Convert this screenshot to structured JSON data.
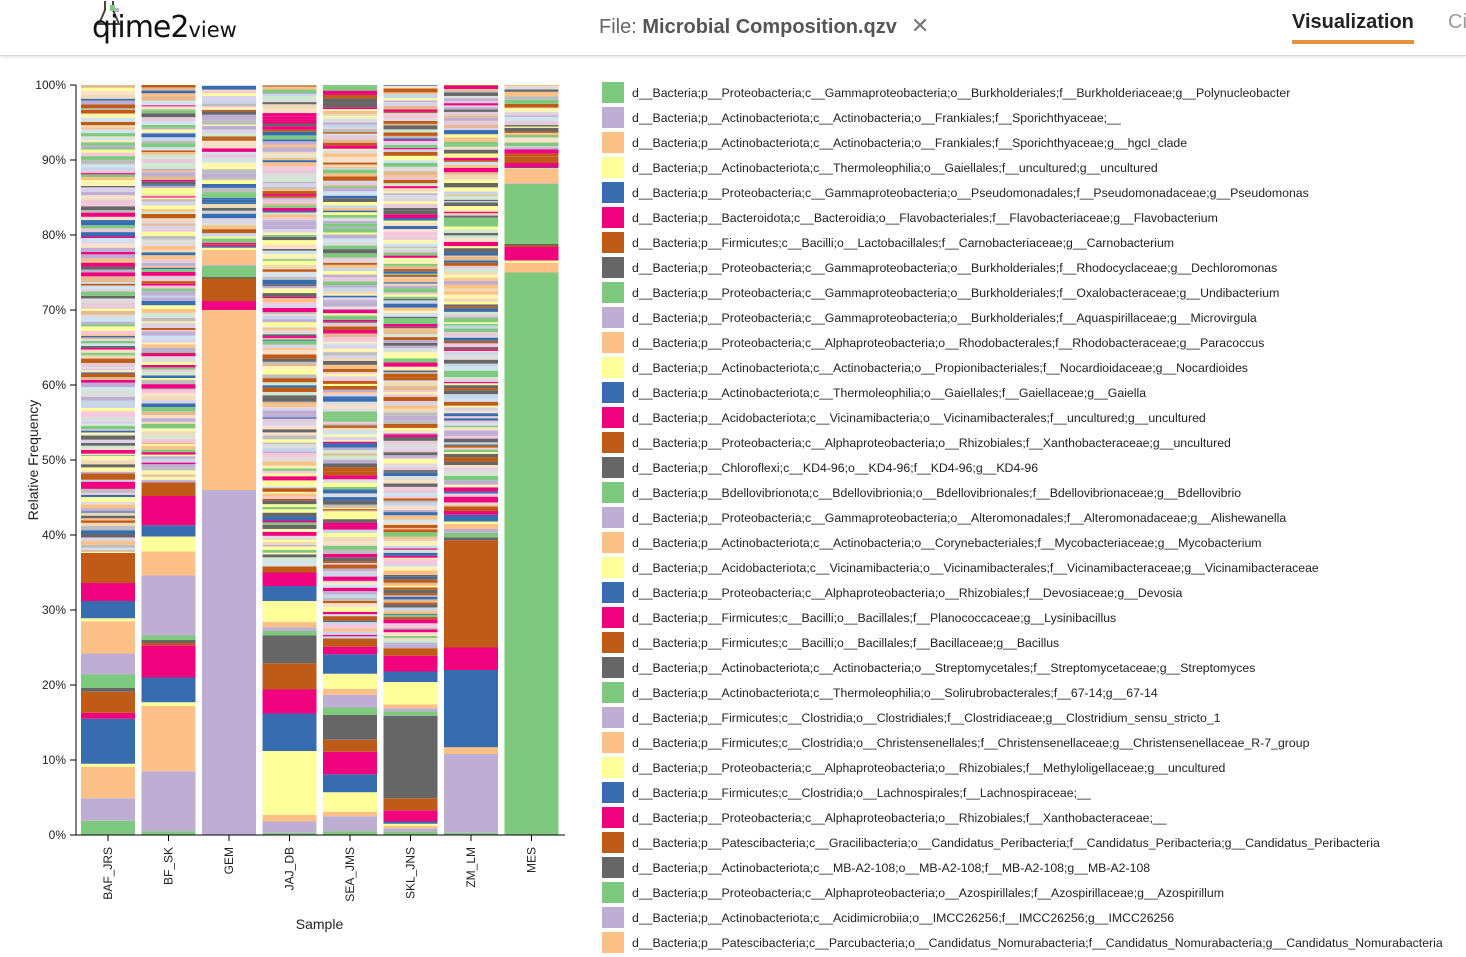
{
  "header": {
    "logo_text": "qiime2",
    "logo_suffix": "view",
    "file_prefix": "File:",
    "file_name": "Microbial Composition.qzv",
    "close_symbol": "✕",
    "tab_active": "Visualization",
    "tab_partial": "Ci"
  },
  "colors": [
    "#7fc97f",
    "#beaed4",
    "#fdc086",
    "#ffff99",
    "#386cb0",
    "#f0027f",
    "#bf5b17",
    "#666666"
  ],
  "legend": [
    "d__Bacteria;p__Proteobacteria;c__Gammaproteobacteria;o__Burkholderiales;f__Burkholderiaceae;g__Polynucleobacter",
    "d__Bacteria;p__Actinobacteriota;c__Actinobacteria;o__Frankiales;f__Sporichthyaceae;__",
    "d__Bacteria;p__Actinobacteriota;c__Actinobacteria;o__Frankiales;f__Sporichthyaceae;g__hgcI_clade",
    "d__Bacteria;p__Actinobacteriota;c__Thermoleophilia;o__Gaiellales;f__uncultured;g__uncultured",
    "d__Bacteria;p__Proteobacteria;c__Gammaproteobacteria;o__Pseudomonadales;f__Pseudomonadaceae;g__Pseudomonas",
    "d__Bacteria;p__Bacteroidota;c__Bacteroidia;o__Flavobacteriales;f__Flavobacteriaceae;g__Flavobacterium",
    "d__Bacteria;p__Firmicutes;c__Bacilli;o__Lactobacillales;f__Carnobacteriaceae;g__Carnobacterium",
    "d__Bacteria;p__Proteobacteria;c__Gammaproteobacteria;o__Burkholderiales;f__Rhodocyclaceae;g__Dechloromonas",
    "d__Bacteria;p__Proteobacteria;c__Gammaproteobacteria;o__Burkholderiales;f__Oxalobacteraceae;g__Undibacterium",
    "d__Bacteria;p__Proteobacteria;c__Gammaproteobacteria;o__Burkholderiales;f__Aquaspirillaceae;g__Microvirgula",
    "d__Bacteria;p__Proteobacteria;c__Alphaproteobacteria;o__Rhodobacterales;f__Rhodobacteraceae;g__Paracoccus",
    "d__Bacteria;p__Actinobacteriota;c__Actinobacteria;o__Propionibacteriales;f__Nocardioidaceae;g__Nocardioides",
    "d__Bacteria;p__Actinobacteriota;c__Thermoleophilia;o__Gaiellales;f__Gaiellaceae;g__Gaiella",
    "d__Bacteria;p__Acidobacteriota;c__Vicinamibacteria;o__Vicinamibacterales;f__uncultured;g__uncultured",
    "d__Bacteria;p__Proteobacteria;c__Alphaproteobacteria;o__Rhizobiales;f__Xanthobacteraceae;g__uncultured",
    "d__Bacteria;p__Chloroflexi;c__KD4-96;o__KD4-96;f__KD4-96;g__KD4-96",
    "d__Bacteria;p__Bdellovibrionota;c__Bdellovibrionia;o__Bdellovibrionales;f__Bdellovibrionaceae;g__Bdellovibrio",
    "d__Bacteria;p__Proteobacteria;c__Gammaproteobacteria;o__Alteromonadales;f__Alteromonadaceae;g__Alishewanella",
    "d__Bacteria;p__Actinobacteriota;c__Actinobacteria;o__Corynebacteriales;f__Mycobacteriaceae;g__Mycobacterium",
    "d__Bacteria;p__Acidobacteriota;c__Vicinamibacteria;o__Vicinamibacterales;f__Vicinamibacteraceae;g__Vicinamibacteraceae",
    "d__Bacteria;p__Proteobacteria;c__Alphaproteobacteria;o__Rhizobiales;f__Devosiaceae;g__Devosia",
    "d__Bacteria;p__Firmicutes;c__Bacilli;o__Bacillales;f__Planococcaceae;g__Lysinibacillus",
    "d__Bacteria;p__Firmicutes;c__Bacilli;o__Bacillales;f__Bacillaceae;g__Bacillus",
    "d__Bacteria;p__Actinobacteriota;c__Actinobacteria;o__Streptomycetales;f__Streptomycetaceae;g__Streptomyces",
    "d__Bacteria;p__Actinobacteriota;c__Thermoleophilia;o__Solirubrobacterales;f__67-14;g__67-14",
    "d__Bacteria;p__Firmicutes;c__Clostridia;o__Clostridiales;f__Clostridiaceae;g__Clostridium_sensu_stricto_1",
    "d__Bacteria;p__Firmicutes;c__Clostridia;o__Christensenellales;f__Christensenellaceae;g__Christensenellaceae_R-7_group",
    "d__Bacteria;p__Proteobacteria;c__Alphaproteobacteria;o__Rhizobiales;f__Methyloligellaceae;g__uncultured",
    "d__Bacteria;p__Firmicutes;c__Clostridia;o__Lachnospirales;f__Lachnospiraceae;__",
    "d__Bacteria;p__Proteobacteria;c__Alphaproteobacteria;o__Rhizobiales;f__Xanthobacteraceae;__",
    "d__Bacteria;p__Patescibacteria;c__Gracilibacteria;o__Candidatus_Peribacteria;f__Candidatus_Peribacteria;g__Candidatus_Peribacteria",
    "d__Bacteria;p__Actinobacteriota;c__MB-A2-108;o__MB-A2-108;f__MB-A2-108;g__MB-A2-108",
    "d__Bacteria;p__Proteobacteria;c__Alphaproteobacteria;o__Azospirillales;f__Azospirillaceae;g__Azospirillum",
    "d__Bacteria;p__Actinobacteriota;c__Acidimicrobiia;o__IMCC26256;f__IMCC26256;g__IMCC26256",
    "d__Bacteria;p__Patescibacteria;c__Parcubacteria;o__Candidatus_Nomurabacteria;f__Candidatus_Nomurabacteria;g__Candidatus_Nomurabacteria"
  ],
  "chart_data": {
    "type": "bar",
    "stacked": true,
    "ylabel": "Relative Frequency",
    "xlabel": "Sample",
    "ylim": [
      0,
      100
    ],
    "y_ticks": [
      "0%",
      "10%",
      "20%",
      "30%",
      "40%",
      "50%",
      "60%",
      "70%",
      "80%",
      "90%",
      "100%"
    ],
    "categories": [
      "BAF_JRS",
      "BF_SK",
      "GEM",
      "JAJ_DB",
      "SEA_JMS",
      "SKL_JNS",
      "ZM_LM",
      "MES"
    ],
    "series": [
      {
        "name": "d__Bacteria;p__Proteobacteria;c__Gammaproteobacteria;o__Burkholderiales;f__Burkholderiaceae;g__Polynucleobacter",
        "values": [
          1.9,
          0.5,
          0,
          0.3,
          0.5,
          0.5,
          0.3,
          75
        ]
      },
      {
        "name": "d__Bacteria;p__Actinobacteriota;c__Actinobacteria;o__Frankiales;f__Sporichthyaceae;__",
        "values": [
          3.0,
          8.0,
          46.0,
          1.5,
          2.0,
          0.4,
          10.5,
          0
        ]
      },
      {
        "name": "d__Bacteria;p__Actinobacteriota;c__Actinobacteria;o__Frankiales;f__Sporichthyaceae;g__hgcI_clade",
        "values": [
          4.2,
          8.7,
          24.0,
          0.9,
          0.6,
          0.3,
          0.9,
          1.3
        ]
      },
      {
        "name": "d__Bacteria;p__Actinobacteriota;c__Thermoleophilia;o__Gaiellales;f__uncultured;g__uncultured",
        "values": [
          0.4,
          0.5,
          0,
          8.5,
          2.6,
          0.3,
          0,
          0.3
        ]
      },
      {
        "name": "d__Bacteria;p__Proteobacteria;c__Gammaproteobacteria;o__Pseudomonadales;f__Pseudomonadaceae;g__Pseudomonas",
        "values": [
          6.0,
          3.3,
          0,
          5.0,
          2.4,
          0.3,
          10.3,
          0
        ]
      },
      {
        "name": "d__Bacteria;p__Bacteroidota;c__Bacteroidia;o__Flavobacteriales;f__Flavobacteriaceae;g__Flavobacterium",
        "values": [
          0.8,
          4.3,
          1.2,
          3.2,
          3.0,
          1.5,
          3.0,
          1.8
        ]
      },
      {
        "name": "d__Bacteria;p__Firmicutes;c__Bacilli;o__Lactobacillales;f__Carnobacteriaceae;g__Carnobacterium",
        "values": [
          2.8,
          0.3,
          3.0,
          3.5,
          1.6,
          1.6,
          14.3,
          0.2
        ]
      },
      {
        "name": "d__Bacteria;p__Proteobacteria;c__Gammaproteobacteria;o__Burkholderiales;f__Rhodocyclaceae;g__Dechloromonas",
        "values": [
          0.5,
          0.4,
          0.2,
          3.7,
          3.3,
          11.0,
          0.4,
          0.2
        ]
      },
      {
        "name": "d__Bacteria;p__Proteobacteria;c__Gammaproteobacteria;o__Burkholderiales;f__Oxalobacteraceae;g__Undibacterium",
        "values": [
          1.8,
          0.6,
          1.5,
          0.6,
          1.0,
          0.6,
          0.6,
          8.0
        ]
      },
      {
        "name": "d__Bacteria;p__Proteobacteria;c__Gammaproteobacteria;o__Burkholderiales;f__Aquaspirillaceae;g__Microvirgula",
        "values": [
          2.8,
          8.0,
          0.1,
          0.5,
          1.7,
          0.4,
          0.5,
          0.1
        ]
      },
      {
        "name": "d__Bacteria;p__Proteobacteria;c__Alphaproteobacteria;o__Rhodobacterales;f__Rhodobacteraceae;g__Paracoccus",
        "values": [
          4.3,
          3.2,
          2.0,
          0.7,
          0.8,
          0.5,
          0.7,
          1.9
        ]
      },
      {
        "name": "d__Bacteria;p__Actinobacteriota;c__Actinobacteria;o__Propionibacteriales;f__Nocardioidaceae;g__Nocardioides",
        "values": [
          0.4,
          2.0,
          0.3,
          2.8,
          2.0,
          3.0,
          0.3,
          0.1
        ]
      },
      {
        "name": "d__Bacteria;p__Actinobacteriota;c__Thermoleophilia;o__Gaiellales;f__Gaiellaceae;g__Gaiella",
        "values": [
          2.3,
          1.5,
          0.2,
          2.0,
          2.6,
          1.4,
          0.9,
          0.1
        ]
      },
      {
        "name": "d__Bacteria;p__Acidobacteriota;c__Vicinamibacteria;o__Vicinamibacterales;f__uncultured;g__uncultured",
        "values": [
          2.4,
          3.9,
          0.2,
          1.8,
          1.0,
          2.1,
          0.5,
          0.6
        ]
      },
      {
        "name": "d__Bacteria;p__Proteobacteria;c__Alphaproteobacteria;o__Rhizobiales;f__Xanthobacteraceae;g__uncultured",
        "values": [
          4.0,
          1.8,
          0.1,
          0.8,
          1.1,
          1.0,
          0.6,
          0.9
        ]
      }
    ]
  }
}
